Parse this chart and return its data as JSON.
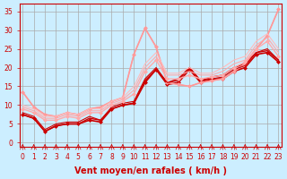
{
  "background_color": "#cceeff",
  "grid_color": "#aaaaaa",
  "xlabel": "Vent moyen/en rafales ( km/h )",
  "xlabel_color": "#cc0000",
  "x_ticks": [
    0,
    1,
    2,
    3,
    4,
    5,
    6,
    7,
    8,
    9,
    10,
    11,
    12,
    13,
    14,
    15,
    16,
    17,
    18,
    19,
    20,
    21,
    22,
    23
  ],
  "y_ticks": [
    0,
    5,
    10,
    15,
    20,
    25,
    30,
    35
  ],
  "xlim": [
    -0.3,
    23.3
  ],
  "ylim": [
    -1,
    37
  ],
  "lines": [
    {
      "x": [
        0,
        1,
        2,
        3,
        4,
        5,
        6,
        7,
        8,
        9,
        10,
        11,
        12,
        13,
        14,
        15,
        16,
        17,
        18,
        19,
        20,
        21,
        22,
        23
      ],
      "y": [
        7.5,
        6.5,
        3,
        4.5,
        5,
        5,
        6,
        5.5,
        9,
        10,
        10.5,
        16,
        19.5,
        15.5,
        16,
        19.5,
        16,
        17,
        17,
        19,
        20,
        23.5,
        24,
        21.5
      ],
      "color": "#cc0000",
      "lw": 1.2,
      "marker": "D",
      "ms": 2
    },
    {
      "x": [
        0,
        1,
        2,
        3,
        4,
        5,
        6,
        7,
        8,
        9,
        10,
        11,
        12,
        13,
        14,
        15,
        16,
        17,
        18,
        19,
        20,
        21,
        22,
        23
      ],
      "y": [
        7.5,
        6.5,
        3,
        4.5,
        5,
        5,
        6.5,
        6,
        9,
        10,
        10.5,
        16.5,
        19.5,
        16,
        17,
        20,
        16.5,
        17.5,
        18,
        20,
        21,
        24,
        24.5,
        22
      ],
      "color": "#cc0000",
      "lw": 1.0,
      "marker": null,
      "ms": 0
    },
    {
      "x": [
        0,
        1,
        2,
        3,
        4,
        5,
        6,
        7,
        8,
        9,
        10,
        11,
        12,
        13,
        14,
        15,
        16,
        17,
        18,
        19,
        20,
        21,
        22,
        23
      ],
      "y": [
        13.5,
        9.5,
        7.5,
        7,
        8,
        7.5,
        9,
        9.5,
        11,
        12,
        23.5,
        30.5,
        25.5,
        16,
        15.5,
        15,
        16,
        16.5,
        17,
        19,
        21,
        25,
        28.5,
        35.5
      ],
      "color": "#ff9999",
      "lw": 1.2,
      "marker": "D",
      "ms": 2
    },
    {
      "x": [
        0,
        1,
        2,
        3,
        4,
        5,
        6,
        7,
        8,
        9,
        10,
        11,
        12,
        13,
        14,
        15,
        16,
        17,
        18,
        19,
        20,
        21,
        22,
        23
      ],
      "y": [
        13.5,
        9.5,
        7.5,
        7,
        8,
        7.5,
        9,
        9.5,
        11,
        12,
        23.5,
        30.5,
        25.5,
        16,
        15.5,
        15,
        16,
        16.5,
        17,
        19,
        21,
        25,
        28.5,
        35.5
      ],
      "color": "#ff9999",
      "lw": 0.8,
      "marker": null,
      "ms": 0
    },
    {
      "x": [
        0,
        1,
        2,
        3,
        4,
        5,
        6,
        7,
        8,
        9,
        10,
        11,
        12,
        13,
        14,
        15,
        16,
        17,
        18,
        19,
        20,
        21,
        22,
        23
      ],
      "y": [
        8,
        7,
        3.5,
        5,
        5.5,
        5.5,
        7,
        6,
        9.5,
        10.5,
        11,
        17,
        20,
        16,
        16.5,
        20,
        16.5,
        17,
        17.5,
        19.5,
        20.5,
        24,
        25,
        22
      ],
      "color": "#cc0000",
      "lw": 0.8,
      "marker": null,
      "ms": 0
    },
    {
      "x": [
        0,
        1,
        2,
        3,
        4,
        5,
        6,
        7,
        8,
        9,
        10,
        11,
        12,
        13,
        14,
        15,
        16,
        17,
        18,
        19,
        20,
        21,
        22,
        23
      ],
      "y": [
        9,
        8,
        6,
        6,
        7,
        6.5,
        8,
        8,
        10,
        11,
        13,
        19,
        22,
        17,
        17,
        18,
        17,
        17.5,
        18,
        20,
        21.5,
        25,
        27,
        23
      ],
      "color": "#ffaaaa",
      "lw": 1.0,
      "marker": "D",
      "ms": 2
    },
    {
      "x": [
        0,
        1,
        2,
        3,
        4,
        5,
        6,
        7,
        8,
        9,
        10,
        11,
        12,
        13,
        14,
        15,
        16,
        17,
        18,
        19,
        20,
        21,
        22,
        23
      ],
      "y": [
        9.5,
        8.5,
        6.5,
        6.5,
        7.5,
        7,
        8.5,
        8.5,
        10.5,
        11.5,
        14,
        20,
        23,
        18,
        18,
        19,
        18,
        18,
        19,
        21,
        22,
        26,
        28,
        24
      ],
      "color": "#ffaaaa",
      "lw": 0.8,
      "marker": null,
      "ms": 0
    },
    {
      "x": [
        0,
        1,
        2,
        3,
        4,
        5,
        6,
        7,
        8,
        9,
        10,
        11,
        12,
        13,
        14,
        15,
        16,
        17,
        18,
        19,
        20,
        21,
        22,
        23
      ],
      "y": [
        10,
        9,
        7,
        7,
        8,
        7.5,
        9,
        9,
        11,
        12,
        15,
        21,
        24,
        18.5,
        18.5,
        20,
        18.5,
        18.5,
        20,
        22,
        23,
        27,
        29,
        25
      ],
      "color": "#ffbbbb",
      "lw": 0.8,
      "marker": null,
      "ms": 0
    }
  ],
  "tick_fontsize": 5.5,
  "label_fontsize": 7
}
